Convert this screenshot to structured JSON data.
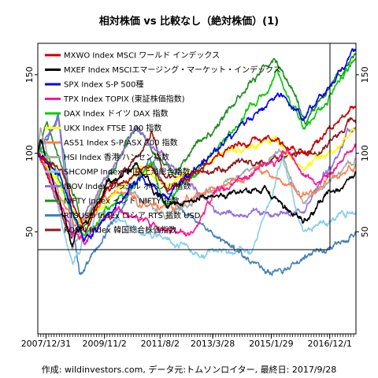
{
  "chart_data": {
    "type": "line",
    "title": "相対株価 vs 比較なし（絶対株価）(1)",
    "footer": "作成: wildinvestors.com, データ元:トムソンロイター, 最終日: 2017/9/28",
    "x_tick_labels": [
      "2007/12/31",
      "2009/11/2",
      "2011/8/2",
      "2013/3/28",
      "2015/1/29",
      "2016/12/1"
    ],
    "x_tick_dates": [
      "2007-12-31",
      "2009-11-02",
      "2011-08-02",
      "2013-03-28",
      "2015-01-29",
      "2016-12-01"
    ],
    "x_range": [
      "2007-09-28",
      "2017-09-28"
    ],
    "y_ticks": [
      50,
      100,
      150
    ],
    "ylim": [
      -15,
      170
    ],
    "grid": false,
    "legend_position": "top-left",
    "series": [
      {
        "name": "MXWO Index MSCI ワールド インデックス",
        "color": "#cc0000",
        "points": [
          [
            "2007-09-28",
            100
          ],
          [
            "2008-06-30",
            88
          ],
          [
            "2009-03-09",
            52
          ],
          [
            "2009-12-31",
            78
          ],
          [
            "2011-04-29",
            92
          ],
          [
            "2011-10-03",
            75
          ],
          [
            "2013-03-28",
            96
          ],
          [
            "2014-12-31",
            112
          ],
          [
            "2016-02-11",
            98
          ],
          [
            "2017-09-28",
            132
          ]
        ]
      },
      {
        "name": "MXEF Index MSCIエマージング・マーケット・インデックス",
        "color": "#000000",
        "points": [
          [
            "2007-09-28",
            100
          ],
          [
            "2007-10-31",
            110
          ],
          [
            "2008-10-27",
            42
          ],
          [
            "2009-12-31",
            82
          ],
          [
            "2010-11-05",
            92
          ],
          [
            "2011-10-03",
            68
          ],
          [
            "2013-06-24",
            72
          ],
          [
            "2014-09-03",
            78
          ],
          [
            "2016-01-21",
            56
          ],
          [
            "2017-09-28",
            88
          ]
        ]
      },
      {
        "name": "SPX Index S-P 500種",
        "color": "#0000ee",
        "points": [
          [
            "2007-09-28",
            100
          ],
          [
            "2008-06-30",
            83
          ],
          [
            "2009-03-09",
            44
          ],
          [
            "2010-12-31",
            83
          ],
          [
            "2011-10-03",
            72
          ],
          [
            "2013-03-28",
            102
          ],
          [
            "2015-05-21",
            139
          ],
          [
            "2016-02-11",
            121
          ],
          [
            "2017-09-28",
            164
          ]
        ]
      },
      {
        "name": "TPX Index TOPIX (東証株価指数)",
        "color": "#ff1493",
        "points": [
          [
            "2007-09-28",
            100
          ],
          [
            "2008-10-27",
            50
          ],
          [
            "2009-03-11",
            45
          ],
          [
            "2010-04-05",
            64
          ],
          [
            "2012-06-04",
            46
          ],
          [
            "2013-05-22",
            77
          ],
          [
            "2015-08-10",
            100
          ],
          [
            "2016-06-24",
            78
          ],
          [
            "2017-09-28",
            106
          ]
        ]
      },
      {
        "name": "DAX Index ドイツ DAX 指数",
        "color": "#00cc00",
        "points": [
          [
            "2007-09-28",
            100
          ],
          [
            "2008-01-31",
            98
          ],
          [
            "2009-03-06",
            46
          ],
          [
            "2011-05-02",
            93
          ],
          [
            "2011-09-12",
            65
          ],
          [
            "2013-05-22",
            103
          ],
          [
            "2015-04-10",
            150
          ],
          [
            "2016-02-11",
            115
          ],
          [
            "2017-09-28",
            160
          ]
        ]
      },
      {
        "name": "UKX Index FTSE 100 指数",
        "color": "#ffff00",
        "points": [
          [
            "2007-09-28",
            100
          ],
          [
            "2009-03-03",
            54
          ],
          [
            "2010-12-31",
            91
          ],
          [
            "2011-09-22",
            78
          ],
          [
            "2013-05-22",
            100
          ],
          [
            "2015-04-27",
            108
          ],
          [
            "2016-02-11",
            88
          ],
          [
            "2017-09-28",
            115
          ]
        ]
      },
      {
        "name": "AS51 Index S-P/ASX 200 指数",
        "color": "#ff7f50",
        "points": [
          [
            "2007-09-28",
            100
          ],
          [
            "2008-11-20",
            52
          ],
          [
            "2010-04-15",
            76
          ],
          [
            "2011-09-22",
            64
          ],
          [
            "2014-08-29",
            88
          ],
          [
            "2016-02-11",
            73
          ],
          [
            "2017-09-28",
            92
          ]
        ]
      },
      {
        "name": "HSI Index 香港 ハンセン指数",
        "color": "#a9a9a9",
        "points": [
          [
            "2007-09-28",
            100
          ],
          [
            "2007-10-30",
            116
          ],
          [
            "2008-10-27",
            40
          ],
          [
            "2009-11-17",
            83
          ],
          [
            "2011-10-04",
            61
          ],
          [
            "2015-04-28",
            99
          ],
          [
            "2016-02-12",
            68
          ],
          [
            "2017-09-28",
            98
          ]
        ]
      },
      {
        "name": "SHCOMP Index 中国 上海総合指数",
        "color": "#87ceeb",
        "points": [
          [
            "2007-09-28",
            100
          ],
          [
            "2007-10-16",
            108
          ],
          [
            "2008-11-04",
            31
          ],
          [
            "2009-08-04",
            62
          ],
          [
            "2012-12-03",
            36
          ],
          [
            "2014-06-30",
            38
          ],
          [
            "2015-06-12",
            96
          ],
          [
            "2016-01-27",
            51
          ],
          [
            "2017-09-28",
            62
          ]
        ]
      },
      {
        "name": "IBOV Index ブラジル ボベスパ指数",
        "color": "#9370db",
        "points": [
          [
            "2007-09-28",
            100
          ],
          [
            "2008-05-20",
            122
          ],
          [
            "2008-10-27",
            49
          ],
          [
            "2010-11-04",
            116
          ],
          [
            "2013-06-27",
            61
          ],
          [
            "2016-01-26",
            62
          ],
          [
            "2017-09-28",
            120
          ]
        ]
      },
      {
        "name": "NIFTY Index インド NIFTY 指数",
        "color": "#1e8c1e",
        "points": [
          [
            "2007-09-28",
            100
          ],
          [
            "2008-01-08",
            118
          ],
          [
            "2009-03-06",
            54
          ],
          [
            "2010-11-05",
            117
          ],
          [
            "2011-12-20",
            84
          ],
          [
            "2015-03-04",
            162
          ],
          [
            "2016-02-29",
            122
          ],
          [
            "2017-09-28",
            165
          ]
        ]
      },
      {
        "name": "RTSUSD Index ロシア RTS 指数 USD",
        "color": "#4682b4",
        "points": [
          [
            "2007-09-28",
            100
          ],
          [
            "2008-05-19",
            125
          ],
          [
            "2009-01-23",
            24
          ],
          [
            "2011-04-11",
            97
          ],
          [
            "2012-06-01",
            60
          ],
          [
            "2014-12-16",
            25
          ],
          [
            "2016-01-20",
            31
          ],
          [
            "2017-09-28",
            48
          ]
        ]
      },
      {
        "name": "KOSPI Index 韓国総合株価指数",
        "color": "#8b1a1a",
        "points": [
          [
            "2007-09-28",
            100
          ],
          [
            "2008-10-24",
            46
          ],
          [
            "2011-04-27",
            112
          ],
          [
            "2011-09-26",
            83
          ],
          [
            "2016-06-24",
            100
          ],
          [
            "2017-09-28",
            120
          ]
        ]
      }
    ]
  }
}
